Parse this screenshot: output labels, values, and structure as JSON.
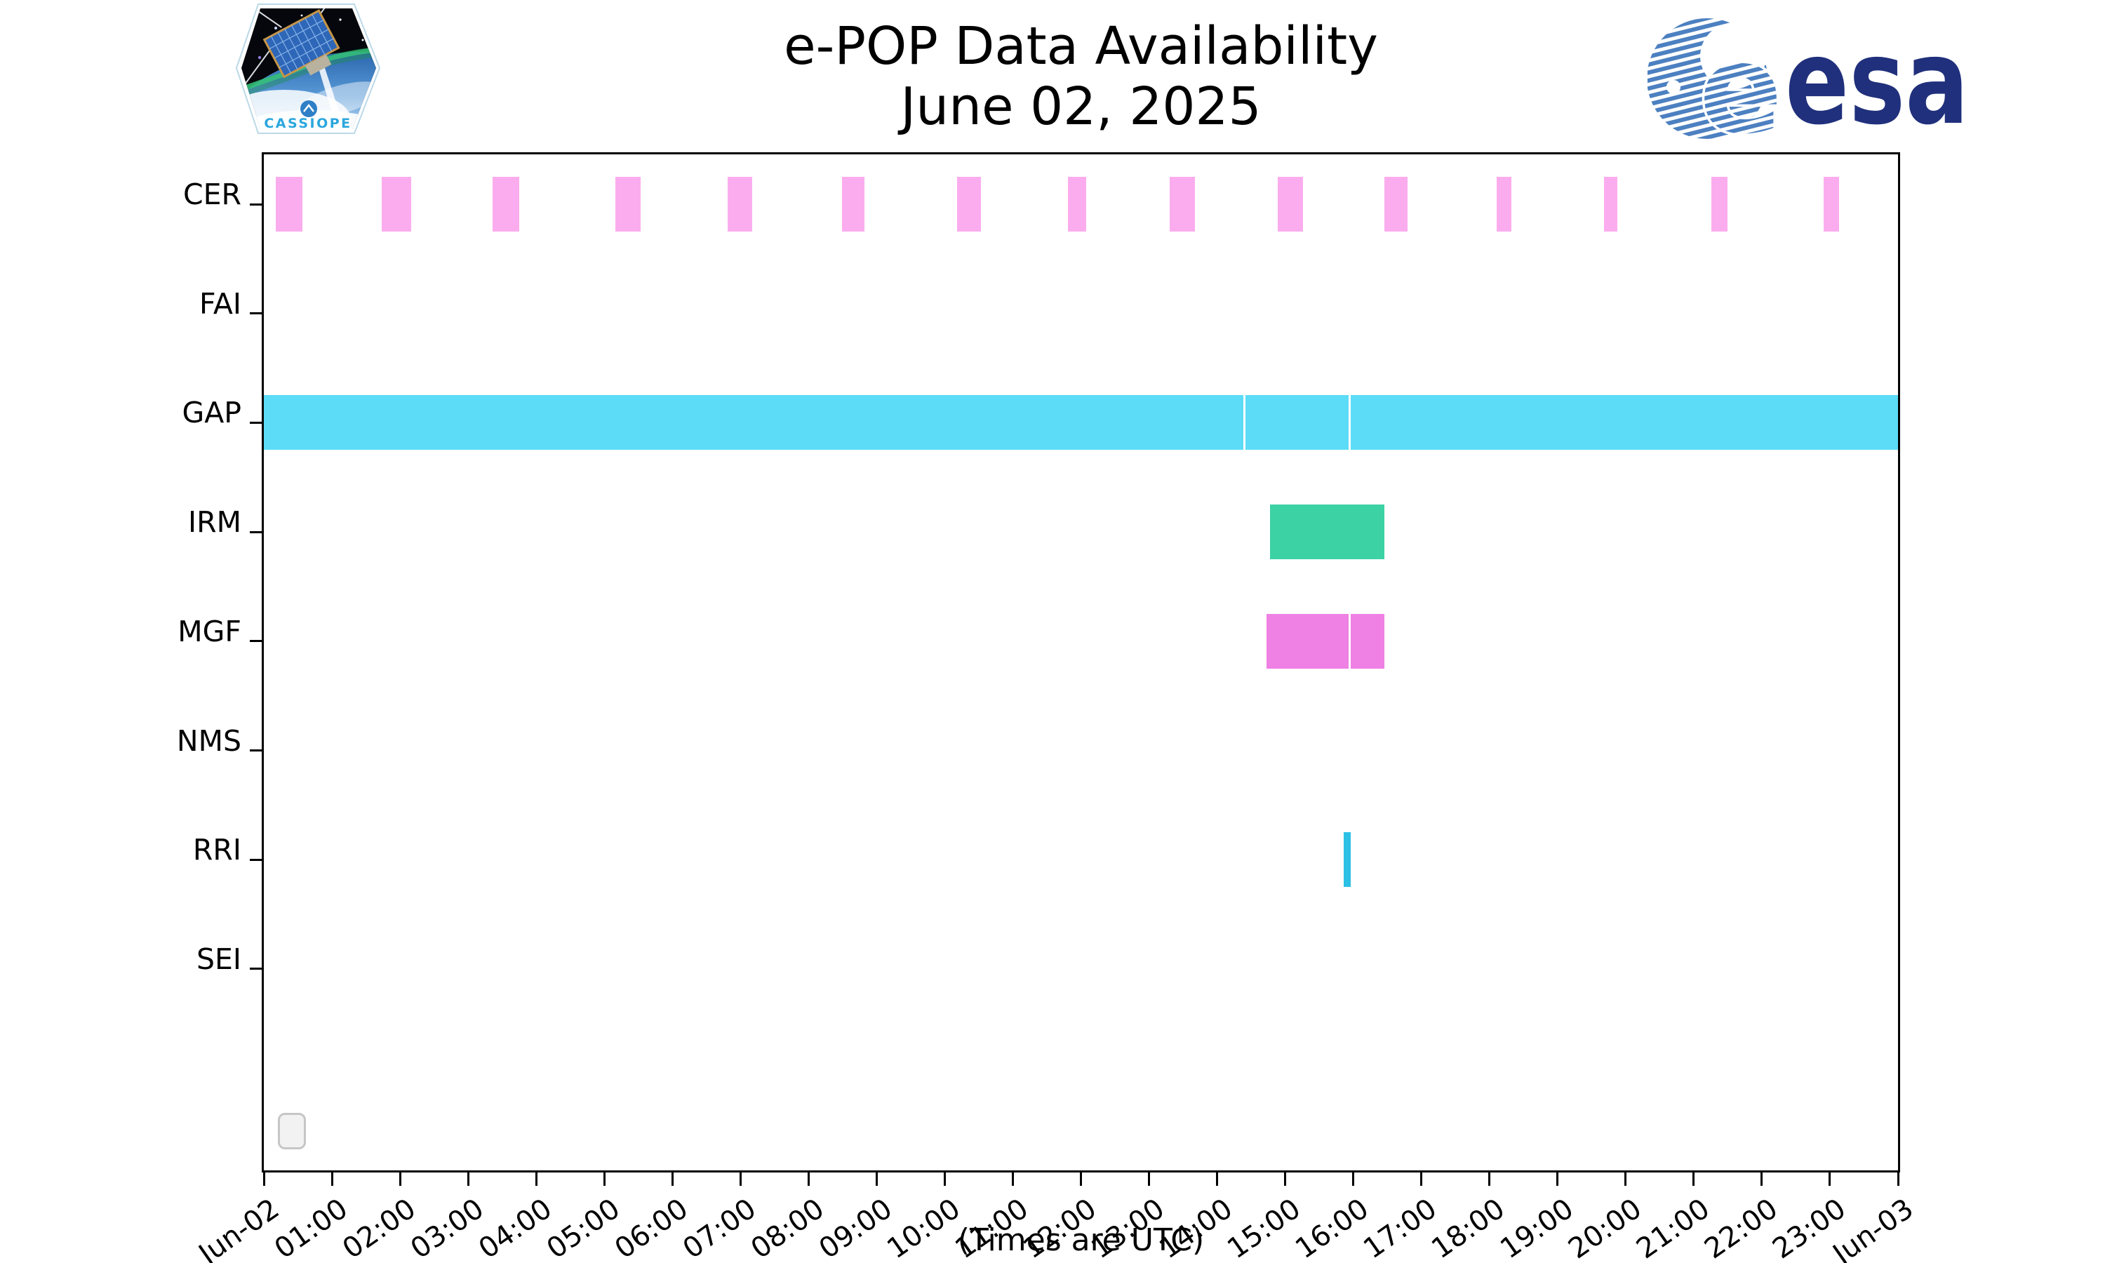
{
  "header": {
    "title_line1": "e-POP Data Availability",
    "title_line2": "June 02, 2025",
    "cassiope_patch_label": "CASSIOPE",
    "esa_wordmark": "esa"
  },
  "chart_data": {
    "type": "timeline-gantt",
    "title": "e-POP Data Availability",
    "subtitle": "June 02, 2025",
    "xlabel": "(Times are UTC)",
    "x_axis": {
      "start_label": "Jun-02",
      "end_label": "Jun-03",
      "hours_span": 24,
      "tick_labels": [
        "Jun-02",
        "01:00",
        "02:00",
        "03:00",
        "04:00",
        "05:00",
        "06:00",
        "07:00",
        "08:00",
        "09:00",
        "10:00",
        "11:00",
        "12:00",
        "13:00",
        "14:00",
        "15:00",
        "16:00",
        "17:00",
        "18:00",
        "19:00",
        "20:00",
        "21:00",
        "22:00",
        "23:00",
        "Jun-03"
      ]
    },
    "rows": [
      {
        "label": "CER",
        "color": "#FBACEE",
        "intervals": [
          [
            0.18,
            0.57
          ],
          [
            1.73,
            2.16
          ],
          [
            3.36,
            3.75
          ],
          [
            5.16,
            5.53
          ],
          [
            6.81,
            7.17
          ],
          [
            8.49,
            8.82
          ],
          [
            10.18,
            10.53
          ],
          [
            11.81,
            12.08
          ],
          [
            13.3,
            13.67
          ],
          [
            14.89,
            15.26
          ],
          [
            16.46,
            16.8
          ],
          [
            18.11,
            18.32
          ],
          [
            19.68,
            19.88
          ],
          [
            21.26,
            21.5
          ],
          [
            22.91,
            23.13
          ]
        ]
      },
      {
        "label": "FAI",
        "color": null,
        "intervals": []
      },
      {
        "label": "GAP",
        "color": "#5CDCF7",
        "intervals": [
          [
            0.0,
            14.39
          ],
          [
            14.42,
            15.93
          ],
          [
            15.96,
            24.0
          ]
        ]
      },
      {
        "label": "IRM",
        "color": "#3DD2A4",
        "intervals": [
          [
            14.78,
            16.46
          ]
        ]
      },
      {
        "label": "MGF",
        "color": "#EF80E4",
        "intervals": [
          [
            14.73,
            15.93
          ],
          [
            15.96,
            16.46
          ]
        ]
      },
      {
        "label": "NMS",
        "color": null,
        "intervals": []
      },
      {
        "label": "RRI",
        "color": "#2BC0E4",
        "intervals": [
          [
            15.86,
            15.96
          ]
        ]
      },
      {
        "label": "SEI",
        "color": null,
        "intervals": []
      }
    ]
  }
}
